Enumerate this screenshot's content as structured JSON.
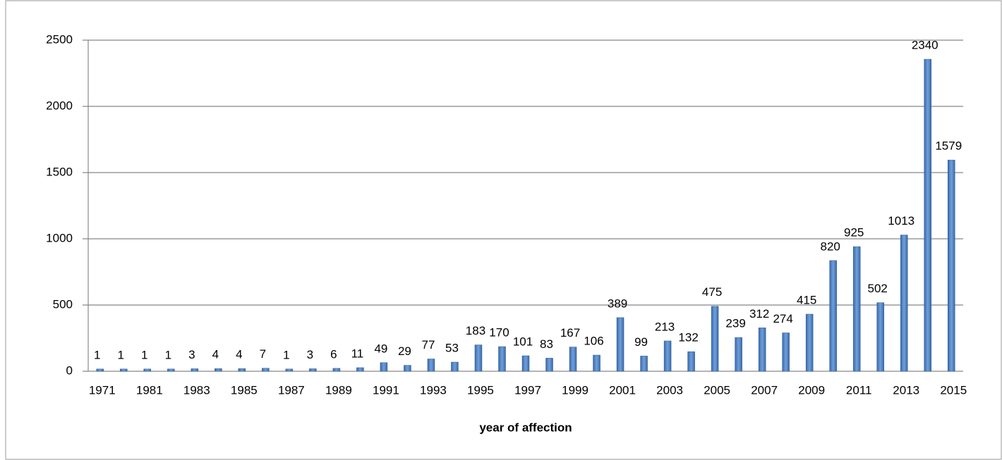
{
  "chart_data": {
    "type": "bar",
    "x_label": "year of affection",
    "categories": [
      "1971",
      null,
      "1981",
      null,
      "1983",
      null,
      "1985",
      null,
      "1987",
      null,
      "1989",
      null,
      "1991",
      null,
      "1993",
      null,
      "1995",
      null,
      "1997",
      null,
      "1999",
      null,
      "2001",
      null,
      "2003",
      null,
      "2005",
      null,
      "2007",
      null,
      "2009",
      null,
      "2011",
      null,
      "2013",
      null,
      "2015"
    ],
    "values": [
      1,
      1,
      1,
      1,
      3,
      4,
      4,
      7,
      1,
      3,
      6,
      11,
      49,
      29,
      77,
      53,
      183,
      170,
      101,
      83,
      167,
      106,
      389,
      99,
      213,
      132,
      475,
      239,
      312,
      274,
      415,
      820,
      925,
      502,
      1013,
      2340,
      1579
    ],
    "color": "#4a7ebb",
    "ylim": [
      0,
      2500
    ],
    "yticks": [
      0,
      500,
      1000,
      1500,
      2000,
      2500
    ],
    "grid": true
  }
}
